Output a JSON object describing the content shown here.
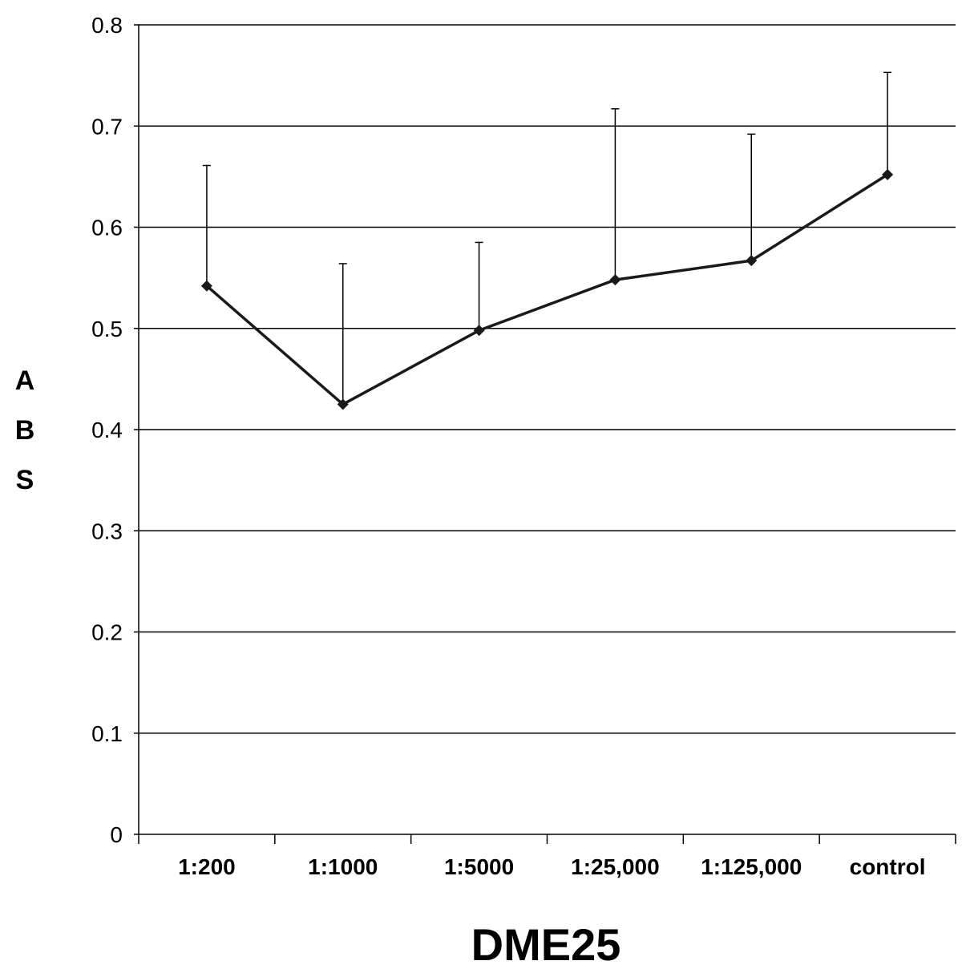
{
  "chart_data": {
    "type": "line",
    "title": "",
    "xlabel": "DME25",
    "ylabel": "ABS",
    "categories": [
      "1:200",
      "1:1000",
      "1:5000",
      "1:25,000",
      "1:125,000",
      "control"
    ],
    "series": [
      {
        "values": [
          0.542,
          0.425,
          0.498,
          0.548,
          0.567,
          0.652
        ],
        "error_upper": [
          0.119,
          0.139,
          0.087,
          0.169,
          0.125,
          0.101
        ],
        "marker": "diamond",
        "color": "#1a1a1a"
      }
    ],
    "ylim": [
      0,
      0.8
    ],
    "yticks": [
      "0",
      "0.1",
      "0.2",
      "0.3",
      "0.4",
      "0.5",
      "0.6",
      "0.7",
      "0.8"
    ],
    "grid": true,
    "legend": "none"
  }
}
